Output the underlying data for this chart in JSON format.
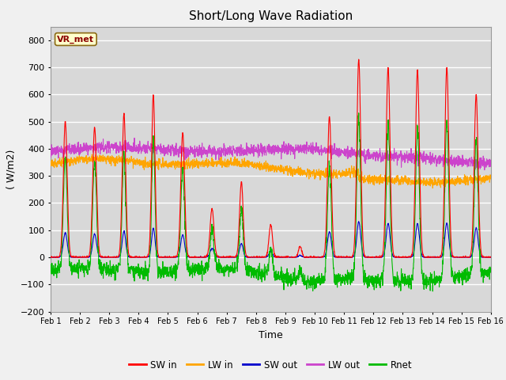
{
  "title": "Short/Long Wave Radiation",
  "xlabel": "Time",
  "ylabel": "( W/m2)",
  "ylim": [
    -200,
    850
  ],
  "yticks": [
    -200,
    -100,
    0,
    100,
    200,
    300,
    400,
    500,
    600,
    700,
    800
  ],
  "xlim": [
    0,
    15
  ],
  "xtick_labels": [
    "Feb 1",
    "Feb 2",
    "Feb 3",
    "Feb 4",
    "Feb 5",
    "Feb 6",
    "Feb 7",
    "Feb 8",
    "Feb 9",
    "Feb 10",
    "Feb 11",
    "Feb 12",
    "Feb 13",
    "Feb 14",
    "Feb 15",
    "Feb 16"
  ],
  "station_label": "VR_met",
  "colors": {
    "SW_in": "#ff0000",
    "LW_in": "#ffa500",
    "SW_out": "#0000cc",
    "LW_out": "#cc44cc",
    "Rnet": "#00bb00"
  },
  "legend_labels": [
    "SW in",
    "LW in",
    "SW out",
    "LW out",
    "Rnet"
  ],
  "background_color": "#d8d8d8",
  "fig_facecolor": "#f0f0f0",
  "grid_color": "#ffffff",
  "title_fontsize": 11,
  "label_fontsize": 9,
  "tick_fontsize": 8,
  "line_width": 0.8
}
